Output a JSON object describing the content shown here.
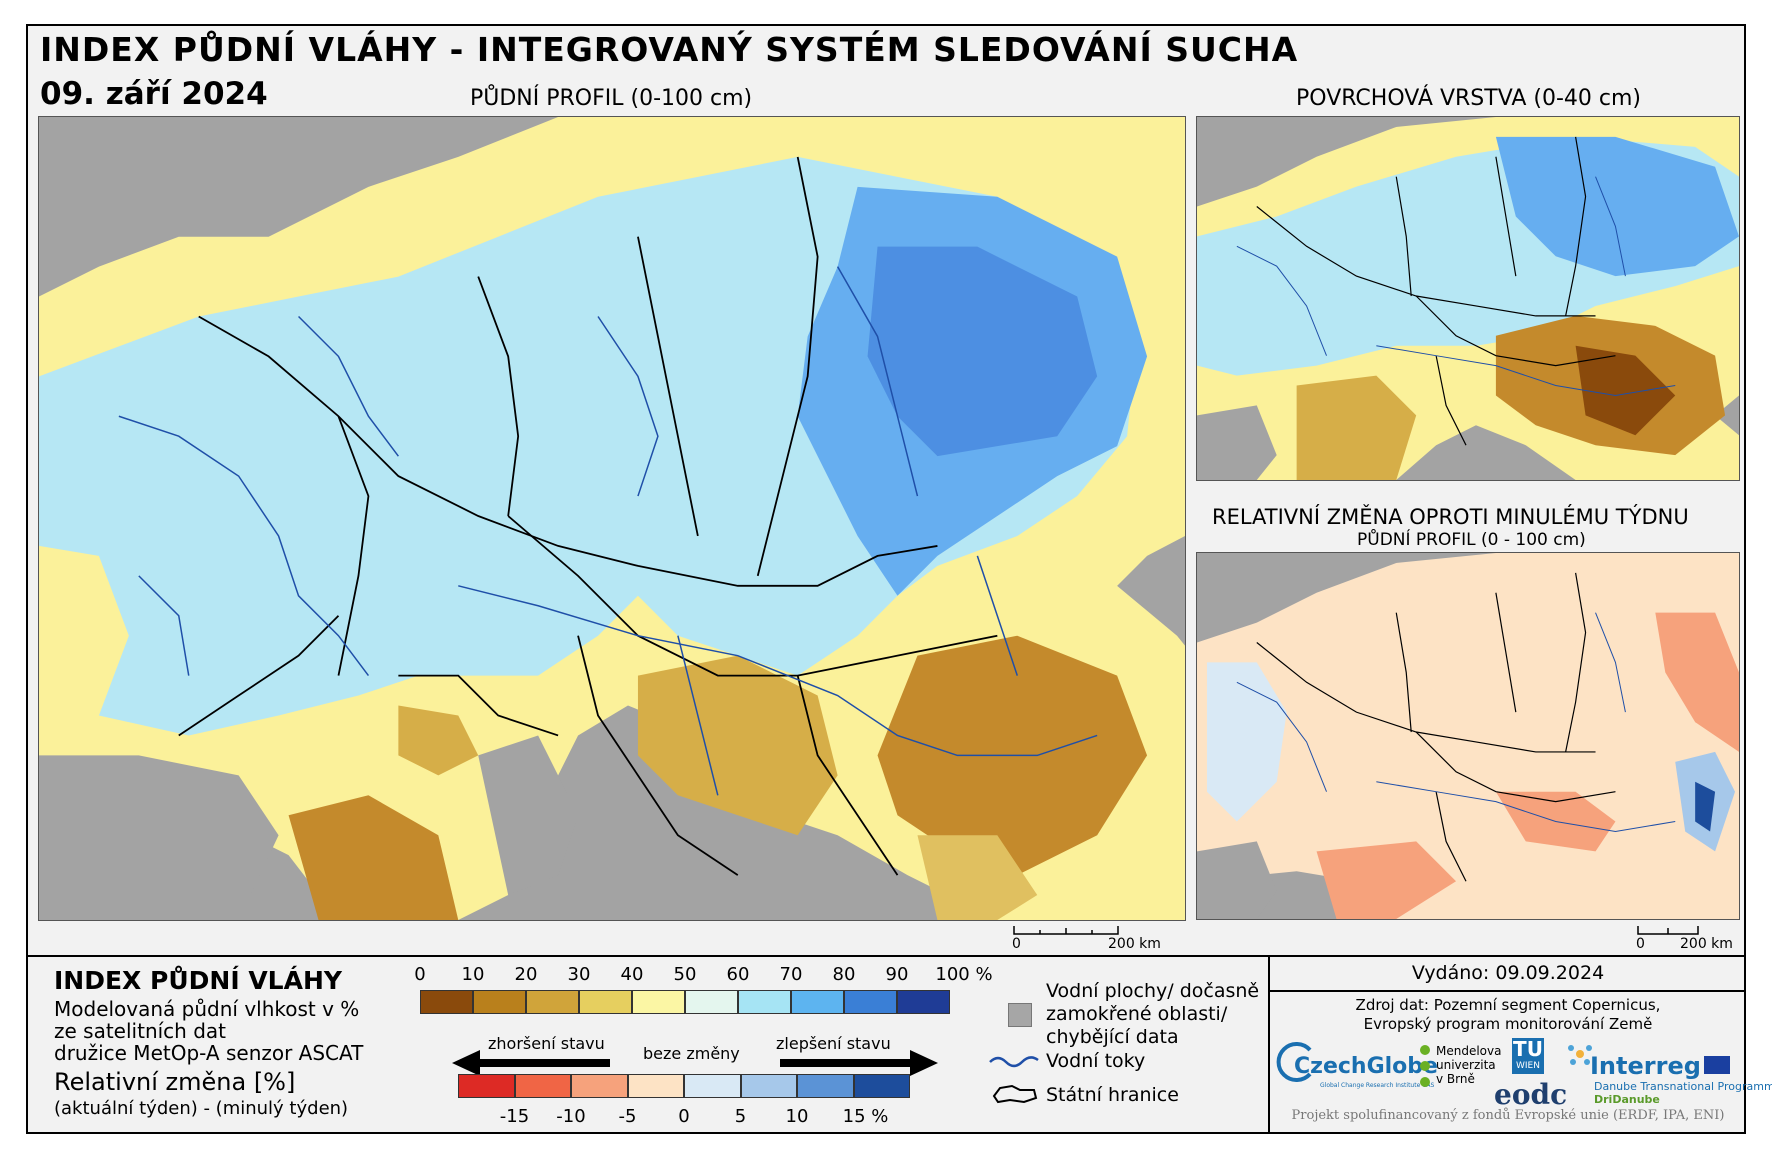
{
  "header": {
    "title": "INDEX PŮDNÍ VLÁHY - INTEGROVANÝ SYSTÉM SLEDOVÁNÍ SUCHA",
    "date": "09. září 2024"
  },
  "maps": {
    "main_caption": "PŮDNÍ PROFIL (0-100 cm)",
    "surface_caption": "POVRCHOVÁ VRSTVA (0-40 cm)",
    "change_caption": "RELATIVNÍ ZMĚNA OPROTI MINULÉMU TÝDNU",
    "change_subcaption": "PŮDNÍ PROFIL (0 - 100 cm)",
    "scale_zero": "0",
    "scale_main": "200 km",
    "scale_small": "200 km"
  },
  "legend": {
    "title": "INDEX PŮDNÍ VLÁHY",
    "desc": [
      "Modelovaná půdní vlhkost v %",
      "ze satelitních dat",
      "družice MetOp-A senzor ASCAT"
    ],
    "rel_title": "Relativní změna [%]",
    "rel_desc": "(aktuální týden) - (minulý týden)",
    "moisture_ticks": [
      "0",
      "10",
      "20",
      "30",
      "40",
      "50",
      "60",
      "70",
      "80",
      "90",
      "100 %"
    ],
    "moisture_colors": [
      "#8a4a0c",
      "#b9801c",
      "#d0a43a",
      "#e6cf5f",
      "#fbf6a4",
      "#e4f6ee",
      "#a6e4f4",
      "#5db4f0",
      "#3a7fd6",
      "#1f3c96"
    ],
    "worse_label": "zhoršení stavu",
    "nochange_label": "beze změny",
    "better_label": "zlepšení stavu",
    "change_ticks": [
      "-15",
      "-10",
      "-5",
      "0",
      "5",
      "10",
      "15 %"
    ],
    "change_colors": [
      "#dd2a25",
      "#f06545",
      "#f6a27c",
      "#fde3c5",
      "#d9e9f5",
      "#a6c8ea",
      "#5b93d6",
      "#1d4d9c"
    ],
    "water_label": [
      "Vodní plochy/ dočasně",
      "zamokřené oblasti/",
      "chybějící data"
    ],
    "rivers_label": "Vodní toky",
    "borders_label": "Státní hranice",
    "colors": {
      "missing": "#a6a6a6",
      "river": "#1f4fa8",
      "border": "#000000"
    }
  },
  "info": {
    "issued": "Vydáno: 09.09.2024",
    "source": [
      "Zdroj dat: Pozemní segment Copernicus,",
      "Evropský program monitorování Země"
    ],
    "funded": "Projekt spolufinancovaný z fondů Evropské unie (ERDF, IPA, ENI)",
    "logos": {
      "czechglobe": "CzechGlobe",
      "czechglobe_sub": "Global Change Research Institute CAS",
      "mendel": [
        "Mendelova",
        "univerzita",
        "v Brně"
      ],
      "tu": "TU",
      "tu_sub": "WIEN",
      "eodc": "eodc",
      "interreg": "Interreg",
      "interreg_sub": "Danube Transnational Programme",
      "dridanube": "DriDanube"
    }
  }
}
